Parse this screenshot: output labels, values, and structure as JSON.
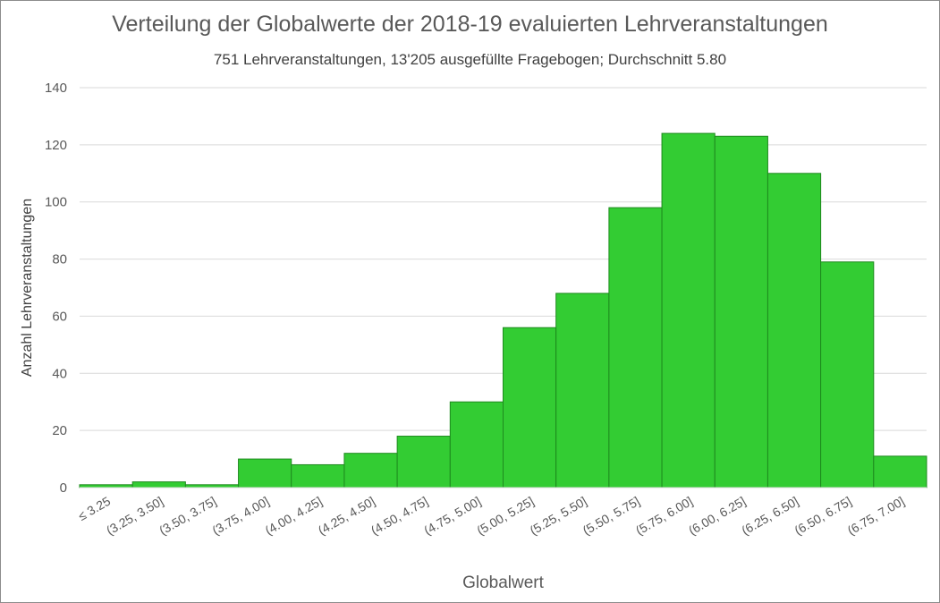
{
  "chart_data": {
    "type": "bar",
    "title": "Verteilung der Globalwerte der 2018-19 evaluierten Lehrveranstaltungen",
    "subtitle": "751 Lehrveranstaltungen, 13'205 ausgefüllte Fragebogen; Durchschnitt 5.80",
    "xlabel": "Globalwert",
    "ylabel": "Anzahl Lehrveranstaltungen",
    "categories": [
      "≤ 3.25",
      "(3.25, 3.50]",
      "(3.50, 3.75]",
      "(3.75, 4.00]",
      "(4.00, 4.25]",
      "(4.25, 4.50]",
      "(4.50, 4.75]",
      "(4.75, 5.00]",
      "(5.00, 5.25]",
      "(5.25, 5.50]",
      "(5.50, 5.75]",
      "(5.75, 6.00]",
      "(6.00, 6.25]",
      "(6.25, 6.50]",
      "(6.50, 6.75]",
      "(6.75, 7.00]"
    ],
    "values": [
      1,
      2,
      1,
      10,
      8,
      12,
      18,
      30,
      56,
      68,
      98,
      124,
      123,
      110,
      79,
      11
    ],
    "ylim": [
      0,
      140
    ],
    "yticks": [
      0,
      20,
      40,
      60,
      80,
      100,
      120,
      140
    ],
    "grid": true,
    "legend": "none",
    "bar_color": "#33cc33",
    "bar_edge_color": "#1e8a1e",
    "grid_color": "#d9d9d9"
  }
}
